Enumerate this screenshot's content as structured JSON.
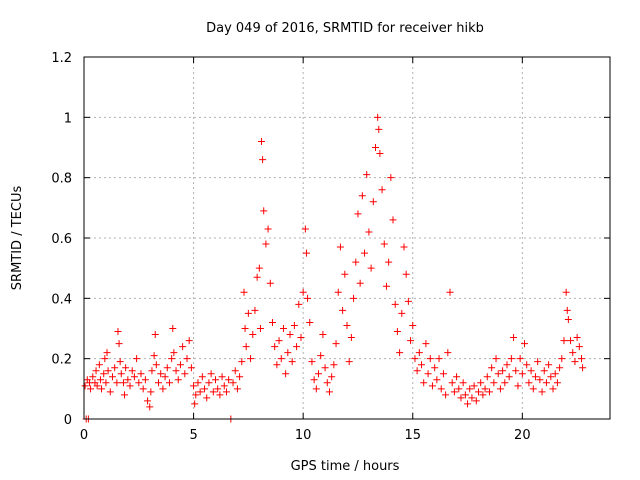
{
  "chart_data": {
    "type": "scatter",
    "title": "Day 049 of 2016, SRMTID for receiver hikb",
    "xlabel": "GPS time / hours",
    "ylabel": "SRMTID / TECUs",
    "xlim": [
      0,
      24
    ],
    "ylim": [
      0,
      1.2
    ],
    "xticks": [
      0,
      5,
      10,
      15,
      20
    ],
    "yticks": [
      0,
      0.2,
      0.4,
      0.6,
      0.8,
      1,
      1.2
    ],
    "xtick_labels": [
      "0",
      "5",
      "10",
      "15",
      "20"
    ],
    "ytick_labels": [
      "0",
      "0.2",
      "0.4",
      "0.6",
      "0.8",
      "1",
      "1.2"
    ],
    "grid": true,
    "marker": "+",
    "series": [
      {
        "name": "SRMTID",
        "color": "#ff0000",
        "points": [
          [
            0.05,
            0.11
          ],
          [
            0.1,
            0.0
          ],
          [
            0.15,
            0.13
          ],
          [
            0.2,
            0.0
          ],
          [
            0.25,
            0.12
          ],
          [
            0.3,
            0.1
          ],
          [
            0.4,
            0.14
          ],
          [
            0.5,
            0.12
          ],
          [
            0.55,
            0.16
          ],
          [
            0.6,
            0.11
          ],
          [
            0.7,
            0.18
          ],
          [
            0.75,
            0.13
          ],
          [
            0.8,
            0.1
          ],
          [
            0.9,
            0.15
          ],
          [
            0.95,
            0.2
          ],
          [
            1.0,
            0.12
          ],
          [
            1.05,
            0.22
          ],
          [
            1.1,
            0.16
          ],
          [
            1.2,
            0.09
          ],
          [
            1.3,
            0.14
          ],
          [
            1.4,
            0.17
          ],
          [
            1.5,
            0.12
          ],
          [
            1.55,
            0.29
          ],
          [
            1.6,
            0.25
          ],
          [
            1.65,
            0.19
          ],
          [
            1.7,
            0.15
          ],
          [
            1.8,
            0.12
          ],
          [
            1.85,
            0.08
          ],
          [
            1.9,
            0.17
          ],
          [
            2.0,
            0.13
          ],
          [
            2.1,
            0.11
          ],
          [
            2.2,
            0.16
          ],
          [
            2.3,
            0.14
          ],
          [
            2.4,
            0.2
          ],
          [
            2.5,
            0.12
          ],
          [
            2.6,
            0.15
          ],
          [
            2.7,
            0.1
          ],
          [
            2.8,
            0.13
          ],
          [
            2.9,
            0.06
          ],
          [
            3.0,
            0.04
          ],
          [
            3.05,
            0.09
          ],
          [
            3.1,
            0.16
          ],
          [
            3.2,
            0.21
          ],
          [
            3.25,
            0.28
          ],
          [
            3.3,
            0.18
          ],
          [
            3.4,
            0.12
          ],
          [
            3.5,
            0.15
          ],
          [
            3.6,
            0.1
          ],
          [
            3.7,
            0.14
          ],
          [
            3.8,
            0.17
          ],
          [
            3.9,
            0.12
          ],
          [
            4.0,
            0.2
          ],
          [
            4.05,
            0.3
          ],
          [
            4.1,
            0.22
          ],
          [
            4.2,
            0.16
          ],
          [
            4.3,
            0.13
          ],
          [
            4.4,
            0.18
          ],
          [
            4.5,
            0.24
          ],
          [
            4.6,
            0.15
          ],
          [
            4.7,
            0.2
          ],
          [
            4.8,
            0.26
          ],
          [
            4.9,
            0.17
          ],
          [
            5.0,
            0.11
          ],
          [
            5.05,
            0.05
          ],
          [
            5.1,
            0.08
          ],
          [
            5.2,
            0.12
          ],
          [
            5.3,
            0.09
          ],
          [
            5.4,
            0.14
          ],
          [
            5.5,
            0.1
          ],
          [
            5.6,
            0.07
          ],
          [
            5.7,
            0.12
          ],
          [
            5.8,
            0.15
          ],
          [
            5.9,
            0.09
          ],
          [
            6.0,
            0.13
          ],
          [
            6.1,
            0.1
          ],
          [
            6.2,
            0.08
          ],
          [
            6.3,
            0.14
          ],
          [
            6.4,
            0.11
          ],
          [
            6.5,
            0.09
          ],
          [
            6.6,
            0.13
          ],
          [
            6.7,
            0.0
          ],
          [
            6.8,
            0.12
          ],
          [
            6.9,
            0.16
          ],
          [
            7.0,
            0.1
          ],
          [
            7.1,
            0.14
          ],
          [
            7.2,
            0.19
          ],
          [
            7.3,
            0.42
          ],
          [
            7.35,
            0.3
          ],
          [
            7.4,
            0.24
          ],
          [
            7.5,
            0.35
          ],
          [
            7.6,
            0.2
          ],
          [
            7.7,
            0.28
          ],
          [
            7.8,
            0.36
          ],
          [
            7.9,
            0.47
          ],
          [
            8.0,
            0.5
          ],
          [
            8.05,
            0.3
          ],
          [
            8.1,
            0.92
          ],
          [
            8.15,
            0.86
          ],
          [
            8.2,
            0.69
          ],
          [
            8.3,
            0.58
          ],
          [
            8.4,
            0.63
          ],
          [
            8.5,
            0.45
          ],
          [
            8.6,
            0.32
          ],
          [
            8.7,
            0.24
          ],
          [
            8.8,
            0.18
          ],
          [
            8.9,
            0.26
          ],
          [
            9.0,
            0.2
          ],
          [
            9.1,
            0.3
          ],
          [
            9.2,
            0.15
          ],
          [
            9.3,
            0.22
          ],
          [
            9.4,
            0.28
          ],
          [
            9.5,
            0.19
          ],
          [
            9.6,
            0.31
          ],
          [
            9.7,
            0.24
          ],
          [
            9.8,
            0.38
          ],
          [
            9.9,
            0.27
          ],
          [
            10.0,
            0.42
          ],
          [
            10.1,
            0.63
          ],
          [
            10.15,
            0.55
          ],
          [
            10.2,
            0.4
          ],
          [
            10.3,
            0.32
          ],
          [
            10.4,
            0.19
          ],
          [
            10.5,
            0.13
          ],
          [
            10.6,
            0.1
          ],
          [
            10.7,
            0.15
          ],
          [
            10.8,
            0.21
          ],
          [
            10.9,
            0.28
          ],
          [
            11.0,
            0.17
          ],
          [
            11.1,
            0.12
          ],
          [
            11.2,
            0.09
          ],
          [
            11.3,
            0.14
          ],
          [
            11.4,
            0.18
          ],
          [
            11.5,
            0.25
          ],
          [
            11.6,
            0.42
          ],
          [
            11.7,
            0.57
          ],
          [
            11.8,
            0.36
          ],
          [
            11.9,
            0.48
          ],
          [
            12.0,
            0.31
          ],
          [
            12.1,
            0.19
          ],
          [
            12.2,
            0.27
          ],
          [
            12.3,
            0.4
          ],
          [
            12.4,
            0.52
          ],
          [
            12.5,
            0.68
          ],
          [
            12.6,
            0.45
          ],
          [
            12.7,
            0.74
          ],
          [
            12.8,
            0.55
          ],
          [
            12.9,
            0.81
          ],
          [
            13.0,
            0.62
          ],
          [
            13.1,
            0.5
          ],
          [
            13.2,
            0.72
          ],
          [
            13.3,
            0.9
          ],
          [
            13.4,
            1.0
          ],
          [
            13.45,
            0.96
          ],
          [
            13.5,
            0.88
          ],
          [
            13.6,
            0.76
          ],
          [
            13.7,
            0.58
          ],
          [
            13.8,
            0.44
          ],
          [
            13.9,
            0.52
          ],
          [
            14.0,
            0.8
          ],
          [
            14.1,
            0.66
          ],
          [
            14.2,
            0.38
          ],
          [
            14.3,
            0.29
          ],
          [
            14.4,
            0.22
          ],
          [
            14.5,
            0.35
          ],
          [
            14.6,
            0.57
          ],
          [
            14.7,
            0.48
          ],
          [
            14.8,
            0.39
          ],
          [
            14.9,
            0.26
          ],
          [
            15.0,
            0.31
          ],
          [
            15.1,
            0.2
          ],
          [
            15.2,
            0.16
          ],
          [
            15.3,
            0.22
          ],
          [
            15.4,
            0.18
          ],
          [
            15.5,
            0.12
          ],
          [
            15.6,
            0.25
          ],
          [
            15.7,
            0.15
          ],
          [
            15.8,
            0.2
          ],
          [
            15.9,
            0.11
          ],
          [
            16.0,
            0.17
          ],
          [
            16.1,
            0.13
          ],
          [
            16.2,
            0.2
          ],
          [
            16.3,
            0.1
          ],
          [
            16.4,
            0.15
          ],
          [
            16.5,
            0.08
          ],
          [
            16.6,
            0.22
          ],
          [
            16.7,
            0.42
          ],
          [
            16.8,
            0.12
          ],
          [
            16.9,
            0.09
          ],
          [
            17.0,
            0.14
          ],
          [
            17.1,
            0.1
          ],
          [
            17.2,
            0.07
          ],
          [
            17.3,
            0.12
          ],
          [
            17.4,
            0.08
          ],
          [
            17.5,
            0.05
          ],
          [
            17.6,
            0.1
          ],
          [
            17.7,
            0.07
          ],
          [
            17.8,
            0.11
          ],
          [
            17.9,
            0.06
          ],
          [
            18.0,
            0.09
          ],
          [
            18.1,
            0.12
          ],
          [
            18.2,
            0.08
          ],
          [
            18.3,
            0.1
          ],
          [
            18.4,
            0.14
          ],
          [
            18.5,
            0.09
          ],
          [
            18.6,
            0.17
          ],
          [
            18.7,
            0.12
          ],
          [
            18.8,
            0.2
          ],
          [
            18.9,
            0.15
          ],
          [
            19.0,
            0.1
          ],
          [
            19.1,
            0.16
          ],
          [
            19.2,
            0.12
          ],
          [
            19.3,
            0.18
          ],
          [
            19.4,
            0.14
          ],
          [
            19.5,
            0.2
          ],
          [
            19.6,
            0.27
          ],
          [
            19.7,
            0.16
          ],
          [
            19.8,
            0.11
          ],
          [
            19.9,
            0.2
          ],
          [
            20.0,
            0.15
          ],
          [
            20.1,
            0.25
          ],
          [
            20.2,
            0.18
          ],
          [
            20.3,
            0.12
          ],
          [
            20.4,
            0.16
          ],
          [
            20.5,
            0.1
          ],
          [
            20.6,
            0.14
          ],
          [
            20.7,
            0.19
          ],
          [
            20.8,
            0.13
          ],
          [
            20.9,
            0.09
          ],
          [
            21.0,
            0.16
          ],
          [
            21.1,
            0.12
          ],
          [
            21.2,
            0.18
          ],
          [
            21.3,
            0.14
          ],
          [
            21.4,
            0.1
          ],
          [
            21.5,
            0.15
          ],
          [
            21.6,
            0.12
          ],
          [
            21.7,
            0.17
          ],
          [
            21.8,
            0.2
          ],
          [
            21.9,
            0.26
          ],
          [
            22.0,
            0.42
          ],
          [
            22.05,
            0.36
          ],
          [
            22.1,
            0.33
          ],
          [
            22.2,
            0.26
          ],
          [
            22.3,
            0.22
          ],
          [
            22.4,
            0.19
          ],
          [
            22.5,
            0.27
          ],
          [
            22.6,
            0.24
          ],
          [
            22.7,
            0.2
          ],
          [
            22.75,
            0.17
          ]
        ]
      }
    ]
  }
}
